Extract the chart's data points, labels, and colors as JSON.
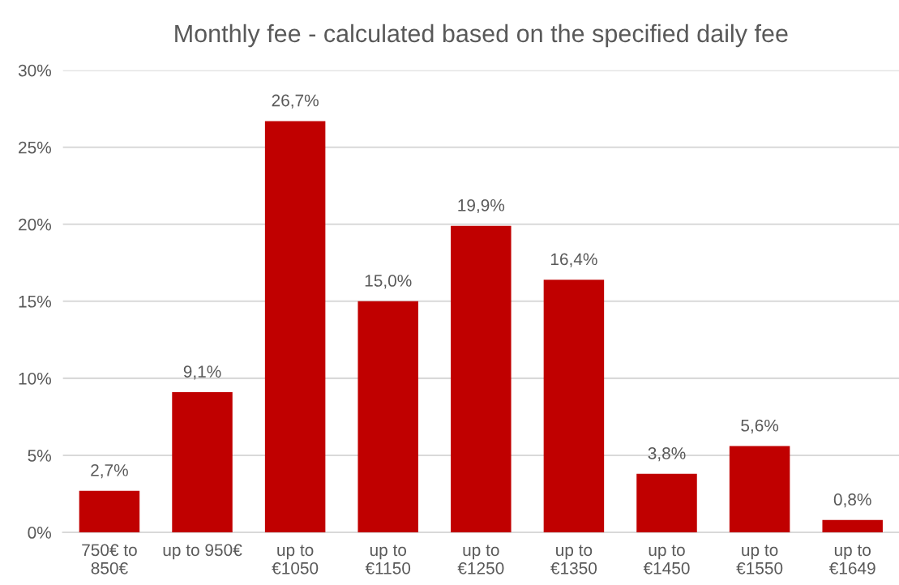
{
  "chart_data": {
    "type": "bar",
    "title": "Monthly fee - calculated based on the specified daily fee",
    "categories": [
      "750€ to\n850€",
      "up to 950€",
      "up to\n€1050",
      "up to\n€1150",
      "up to\n€1250",
      "up to\n€1350",
      "up to\n€1450",
      "up to\n€1550",
      "up to\n€1649"
    ],
    "values": [
      2.7,
      9.1,
      26.7,
      15.0,
      19.9,
      16.4,
      3.8,
      5.6,
      0.8
    ],
    "value_labels": [
      "2,7%",
      "9,1%",
      "26,7%",
      "15,0%",
      "19,9%",
      "16,4%",
      "3,8%",
      "5,6%",
      "0,8%"
    ],
    "color": "#c00000",
    "ylim": [
      0,
      30
    ],
    "yticks": [
      {
        "value": 0,
        "label": "0%"
      },
      {
        "value": 5,
        "label": "5%"
      },
      {
        "value": 10,
        "label": "10%"
      },
      {
        "value": 15,
        "label": "15%"
      },
      {
        "value": 20,
        "label": "20%"
      },
      {
        "value": 25,
        "label": "25%"
      },
      {
        "value": 30,
        "label": "30%"
      }
    ],
    "grid": "y",
    "legend": false
  }
}
